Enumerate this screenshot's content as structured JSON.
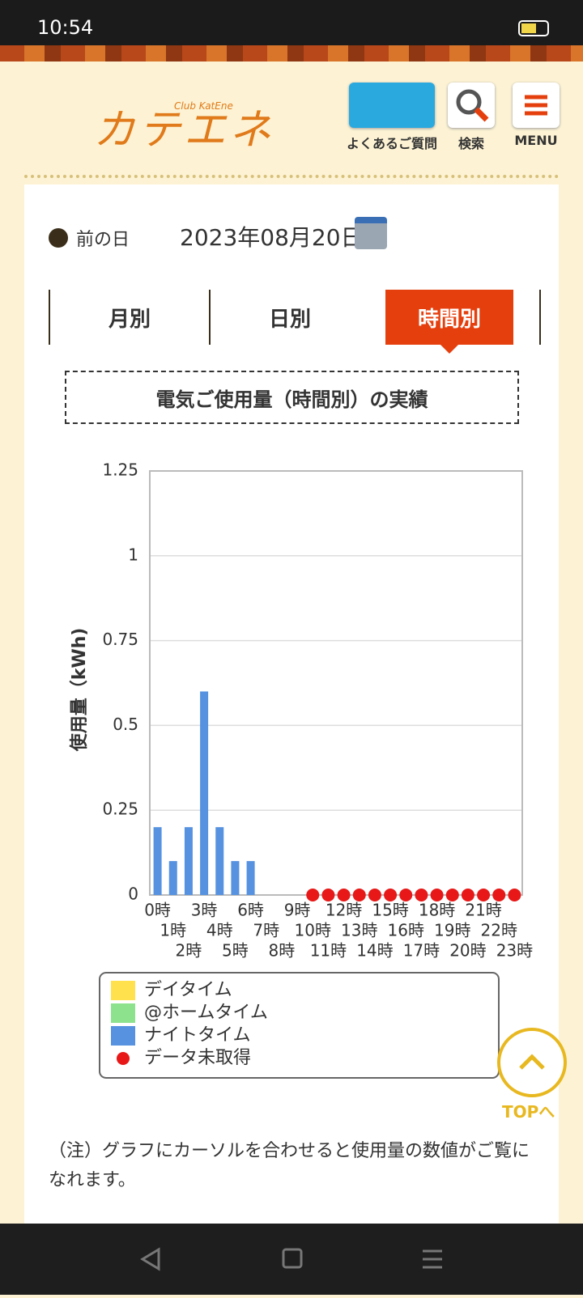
{
  "status_bar": {
    "time": "10:54"
  },
  "header": {
    "logo": "カテエネ",
    "logo_sub": "Club KatEne",
    "nav": [
      "よくあるご質問",
      "検索",
      "MENU"
    ]
  },
  "date_nav": {
    "prev": "前の日",
    "date": "2023年08月20日"
  },
  "tabs": {
    "items": [
      "月別",
      "日別",
      "時間別"
    ],
    "active": 2
  },
  "section_title": "電気ご使用量（時間別）の実績",
  "chart_data": {
    "type": "bar",
    "y_label": "使用量（kWh)",
    "categories": [
      "0時",
      "1時",
      "2時",
      "3時",
      "4時",
      "5時",
      "6時",
      "7時",
      "8時",
      "9時",
      "10時",
      "11時",
      "12時",
      "13時",
      "14時",
      "15時",
      "16時",
      "17時",
      "18時",
      "19時",
      "20時",
      "21時",
      "22時",
      "23時"
    ],
    "series": [
      {
        "name": "デイタイム",
        "color": "#ffe14d",
        "values": [
          0,
          0,
          0,
          0,
          0,
          0,
          0,
          0,
          0,
          0,
          null,
          null,
          null,
          null,
          null,
          null,
          null,
          null,
          null,
          null,
          null,
          null,
          null,
          null
        ]
      },
      {
        "name": "@ホームタイム",
        "color": "#8de28d",
        "values": [
          0,
          0,
          0,
          0,
          0,
          0,
          0,
          0,
          0,
          0,
          null,
          null,
          null,
          null,
          null,
          null,
          null,
          null,
          null,
          null,
          null,
          null,
          null,
          null
        ]
      },
      {
        "name": "ナイトタイム",
        "color": "#5692e0",
        "values": [
          0.2,
          0.1,
          0.2,
          0.6,
          0.2,
          0.1,
          0.1,
          0,
          0,
          0,
          null,
          null,
          null,
          null,
          null,
          null,
          null,
          null,
          null,
          null,
          null,
          null,
          null,
          null
        ]
      },
      {
        "name": "データ未取得",
        "color": "#e81818",
        "marker": "circle",
        "values": [
          null,
          null,
          null,
          null,
          null,
          null,
          null,
          null,
          null,
          null,
          0,
          0,
          0,
          0,
          0,
          0,
          0,
          0,
          0,
          0,
          0,
          0,
          0,
          0
        ]
      }
    ],
    "ylim": [
      0,
      1.25
    ],
    "yticks": [
      0,
      0.25,
      0.5,
      0.75,
      1,
      1.25
    ],
    "grid": true
  },
  "note": "（注）グラフにカーソルを合わせると使用量の数値がご覧になれます。",
  "top_button": "TOPへ"
}
